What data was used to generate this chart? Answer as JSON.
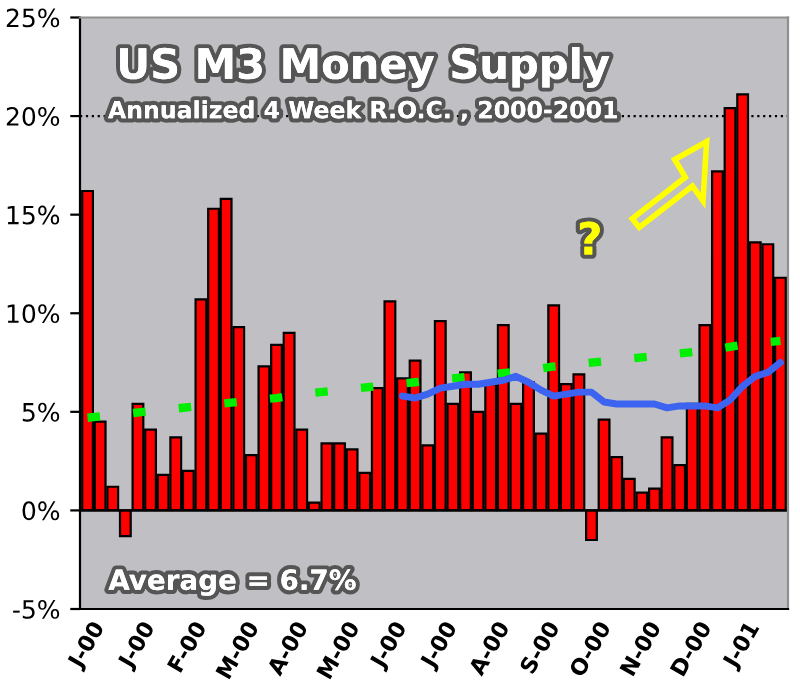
{
  "chart_data": {
    "type": "bar",
    "title": "US M3 Money Supply",
    "subtitle": "Annualized 4 Week R.O.C. , 2000-2001",
    "categories": [
      "J-00",
      null,
      null,
      null,
      "J-00",
      null,
      null,
      null,
      "F-00",
      null,
      null,
      null,
      "M-00",
      null,
      null,
      null,
      "A-00",
      null,
      null,
      null,
      "M-00",
      null,
      null,
      null,
      "J-00",
      null,
      null,
      null,
      "J-00",
      null,
      null,
      null,
      "A-00",
      null,
      null,
      null,
      "S-00",
      null,
      null,
      null,
      "O-00",
      null,
      null,
      null,
      "N-00",
      null,
      null,
      null,
      "D-00",
      null,
      null,
      null,
      "J-01",
      null,
      null,
      null
    ],
    "series": [
      {
        "color": "#ff0000",
        "values": [
          16.2,
          4.5,
          1.2,
          -1.3,
          5.4,
          4.1,
          1.8,
          3.7,
          2.0,
          10.7,
          15.3,
          15.8,
          9.3,
          2.8,
          7.3,
          8.4,
          9.0,
          4.1,
          0.4,
          3.4,
          3.4,
          3.1,
          1.9,
          6.2,
          10.6,
          6.7,
          7.6,
          3.3,
          9.6,
          5.4,
          7.0,
          5.0,
          6.4,
          9.4,
          5.4,
          6.5,
          3.9,
          10.4,
          6.4,
          6.9,
          -1.5,
          4.6,
          2.7,
          1.6,
          0.9,
          1.1,
          3.7,
          2.3,
          5.4,
          9.4,
          17.2,
          20.4,
          21.1,
          13.6,
          13.5,
          11.8
        ]
      },
      {
        "type": "line",
        "color": "#00ee00",
        "line_style": "dashed",
        "values": [
          4.7,
          null,
          null,
          4.9,
          null,
          null,
          5.1,
          null,
          null,
          5.3,
          null,
          null,
          5.5,
          null,
          null,
          5.7,
          null,
          5.9,
          null,
          null,
          6.1,
          null,
          null,
          6.3,
          null,
          null,
          6.5,
          null,
          null,
          6.7,
          null,
          null,
          6.9,
          null,
          null,
          7.1,
          null,
          7.3,
          null,
          null,
          7.5,
          null,
          null,
          7.7,
          null,
          null,
          7.9,
          null,
          null,
          8.1,
          null,
          null,
          8.4,
          null,
          null,
          8.6
        ]
      },
      {
        "type": "line",
        "color": "#3c64f0",
        "line_style": "solid",
        "values": [
          null,
          null,
          null,
          null,
          null,
          null,
          null,
          null,
          null,
          null,
          null,
          null,
          null,
          null,
          null,
          null,
          null,
          null,
          null,
          null,
          null,
          null,
          null,
          null,
          null,
          5.8,
          5.7,
          5.9,
          6.2,
          6.3,
          6.4,
          6.4,
          6.5,
          6.6,
          6.8,
          6.5,
          6.1,
          5.8,
          5.9,
          6.0,
          6.0,
          5.5,
          5.4,
          5.4,
          5.4,
          5.4,
          5.2,
          5.3,
          5.3,
          5.3,
          5.2,
          5.6,
          6.3,
          6.8,
          7.0,
          7.5
        ]
      }
    ],
    "ylim": [
      -5,
      25
    ],
    "yticks": [
      {
        "value": -5,
        "label": "-5%"
      },
      {
        "value": 0,
        "label": "0%"
      },
      {
        "value": 5,
        "label": "5%"
      },
      {
        "value": 10,
        "label": "10%"
      },
      {
        "value": 15,
        "label": "15%"
      },
      {
        "value": 20,
        "label": "20%"
      },
      {
        "value": 25,
        "label": "25%"
      }
    ],
    "ref_lines": [
      {
        "axis": "y",
        "value": 20,
        "color": "#000000",
        "line_style": "dotted"
      }
    ],
    "annotations": [
      "Average = 6.7%",
      "?"
    ],
    "grid": false,
    "legend": false
  }
}
